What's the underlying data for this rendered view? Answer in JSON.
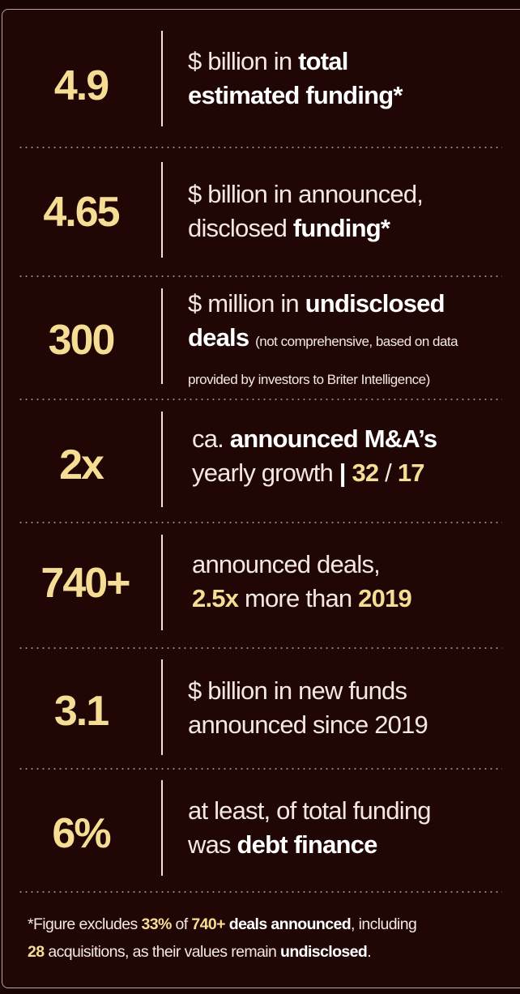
{
  "stats": [
    {
      "value": "4.9",
      "line1_a": "$ billion in ",
      "line1_b": "total",
      "line2_a": "estimated funding*"
    },
    {
      "value": "4.65",
      "line1_a": "$ billion in announced,",
      "line2_a": "disclosed ",
      "line2_b": "funding*"
    },
    {
      "value": "300",
      "line1_a": "$ million in ",
      "line1_b": "undisclosed",
      "line2_a": "deals",
      "line2_b": "(not comprehensive, based on data",
      "line3_a": "provided by investors to Briter Intelligence)"
    },
    {
      "value": "2x",
      "line1_a": "ca. ",
      "line1_b": "announced M&A’s",
      "line2_a": "yearly growth ",
      "line2_b": "|",
      "line2_c": "32",
      "line2_d": " / ",
      "line2_e": "17"
    },
    {
      "value": "740+",
      "line1_a": "announced deals,",
      "line2_a": "2.5x",
      "line2_b": " more than ",
      "line2_c": "2019"
    },
    {
      "value": "3.1",
      "line1_a": "$ billion in new funds",
      "line2_a": "announced since 2019"
    },
    {
      "value": "6%",
      "line1_a": "at least, of total funding",
      "line2_a": "was ",
      "line2_b": "debt finance"
    }
  ],
  "footnote": {
    "a": "*Figure excludes ",
    "b": "33%",
    "c": " of ",
    "d": "740+",
    "e": " deals announced",
    "f": ", including",
    "g": "28",
    "h": " acquisitions, as their values remain ",
    "i": "undisclosed",
    "j": "."
  },
  "colors": {
    "accent": "#f6dd94",
    "background": "#200605",
    "text": "#f3e9df"
  }
}
